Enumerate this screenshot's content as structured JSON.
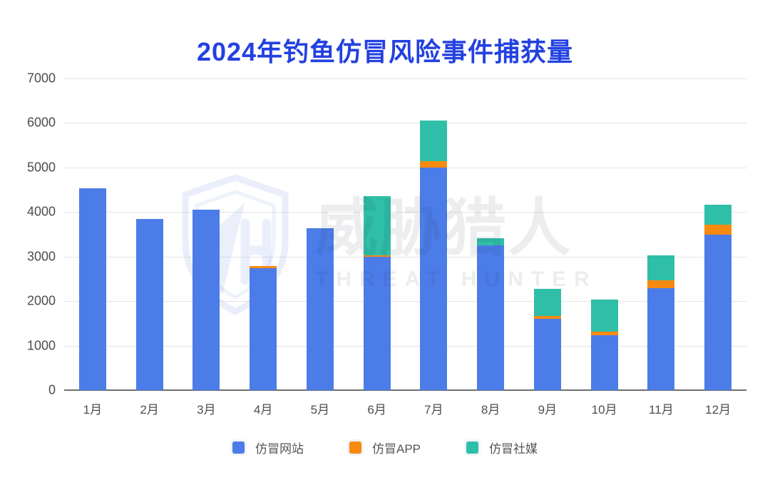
{
  "title": {
    "text": "2024年钓鱼仿冒风险事件捕获量",
    "color": "#2341e0"
  },
  "watermark": {
    "cn": "威胁猎人",
    "en": "THREAT HUNTER",
    "logo": "shield-h-logo"
  },
  "colors": {
    "web": "#4c7ce8",
    "app": "#f98a10",
    "social": "#2fbfa8",
    "grid": "#e4e4e4",
    "axis_line": "#707070",
    "axis_text": "#4d4d4d",
    "title": "#2341e0"
  },
  "legend": {
    "items": [
      {
        "label": "仿冒网站",
        "series": "web"
      },
      {
        "label": "仿冒APP",
        "series": "app"
      },
      {
        "label": "仿冒社媒",
        "series": "social"
      }
    ]
  },
  "chart_data": {
    "type": "bar",
    "stacked": true,
    "title": "2024年钓鱼仿冒风险事件捕获量",
    "categories": [
      "1月",
      "2月",
      "3月",
      "4月",
      "5月",
      "6月",
      "7月",
      "8月",
      "9月",
      "10月",
      "11月",
      "12月"
    ],
    "series": [
      {
        "name": "仿冒网站",
        "key": "web",
        "color": "#4c7ce8",
        "values": [
          4530,
          3840,
          4050,
          2740,
          3640,
          3000,
          5000,
          3250,
          1600,
          1230,
          2290,
          3500
        ]
      },
      {
        "name": "仿冒APP",
        "key": "app",
        "color": "#f98a10",
        "values": [
          0,
          0,
          0,
          50,
          0,
          20,
          150,
          0,
          70,
          80,
          170,
          220
        ]
      },
      {
        "name": "仿冒社媒",
        "key": "social",
        "color": "#2fbfa8",
        "values": [
          0,
          0,
          0,
          0,
          0,
          1330,
          900,
          170,
          610,
          720,
          560,
          440
        ]
      }
    ],
    "totals": [
      4530,
      3840,
      4050,
      2790,
      3640,
      4350,
      6050,
      3420,
      2280,
      2030,
      3020,
      4160
    ],
    "ylim": [
      0,
      7000
    ],
    "y_ticks": [
      0,
      1000,
      2000,
      3000,
      4000,
      5000,
      6000,
      7000
    ],
    "grid": "horizontal",
    "legend_position": "bottom"
  }
}
